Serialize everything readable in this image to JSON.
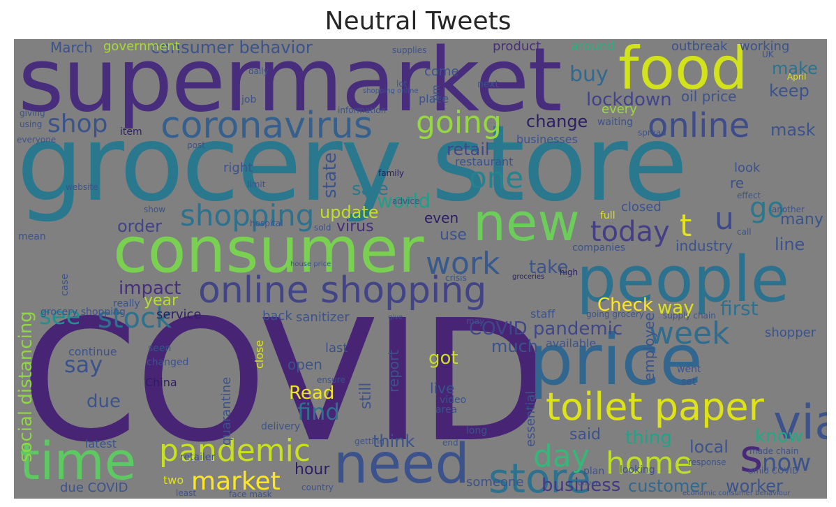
{
  "title": "Neutral Tweets",
  "words": [
    {
      "text": "grocery store",
      "color": "#2a788e"
    },
    {
      "text": "COVID",
      "color": "#482475"
    },
    {
      "text": "supermarket",
      "color": "#472d7b"
    },
    {
      "text": "consumer",
      "color": "#7ad151"
    },
    {
      "text": "people",
      "color": "#2c728e"
    },
    {
      "text": "price",
      "color": "#31668e"
    },
    {
      "text": "food",
      "color": "#d2e21b"
    },
    {
      "text": "need",
      "color": "#3b528b"
    },
    {
      "text": "new",
      "color": "#6ccd5a"
    },
    {
      "text": "time",
      "color": "#5ec962"
    },
    {
      "text": "online shopping",
      "color": "#414487"
    },
    {
      "text": "toilet paper",
      "color": "#dde318"
    },
    {
      "text": "coronavirus",
      "color": "#355f8d"
    },
    {
      "text": "via",
      "color": "#3b528b"
    },
    {
      "text": "store",
      "color": "#2c728e"
    },
    {
      "text": "pandemic",
      "color": "#c8e020"
    },
    {
      "text": "online",
      "color": "#3e4c8a"
    },
    {
      "text": "one",
      "color": "#26828e"
    },
    {
      "text": "going",
      "color": "#95d840"
    },
    {
      "text": "home",
      "color": "#bddf26"
    },
    {
      "text": "week",
      "color": "#2f6c8e"
    },
    {
      "text": "work",
      "color": "#38598c"
    },
    {
      "text": "shopping",
      "color": "#2c728e"
    },
    {
      "text": "day",
      "color": "#35b779"
    },
    {
      "text": "today",
      "color": "#433e85"
    },
    {
      "text": "stock",
      "color": "#2c728e"
    },
    {
      "text": "market",
      "color": "#fde725"
    },
    {
      "text": "now",
      "color": "#3b528b"
    },
    {
      "text": "go",
      "color": "#2a788e"
    },
    {
      "text": "s",
      "color": "#482878"
    },
    {
      "text": "u",
      "color": "#3e4a89"
    },
    {
      "text": "t",
      "color": "#e5e419"
    },
    {
      "text": "shop",
      "color": "#3b528b"
    },
    {
      "text": "lockdown",
      "color": "#414487"
    },
    {
      "text": "buy",
      "color": "#31688e"
    },
    {
      "text": "see",
      "color": "#21918c"
    },
    {
      "text": "say",
      "color": "#3b528b"
    },
    {
      "text": "find",
      "color": "#2c728e"
    },
    {
      "text": "Read",
      "color": "#f1e51d"
    },
    {
      "text": "know",
      "color": "#22a884"
    },
    {
      "text": "business",
      "color": "#443983"
    },
    {
      "text": "customer",
      "color": "#31688e"
    },
    {
      "text": "worker",
      "color": "#3b528b"
    },
    {
      "text": "COVID pandemic",
      "color": "#3f4788"
    },
    {
      "text": "Check",
      "color": "#fde725"
    },
    {
      "text": "way",
      "color": "#dde318"
    },
    {
      "text": "first",
      "color": "#2c728e"
    },
    {
      "text": "social distancing",
      "color": "#90d743"
    },
    {
      "text": "update",
      "color": "#c2df23"
    },
    {
      "text": "order",
      "color": "#414487"
    },
    {
      "text": "world",
      "color": "#1f9e89"
    },
    {
      "text": "sale",
      "color": "#2a788e"
    },
    {
      "text": "impact",
      "color": "#472f7d"
    },
    {
      "text": "year",
      "color": "#b5de2b"
    },
    {
      "text": "change",
      "color": "#2d1e63"
    },
    {
      "text": "retail",
      "color": "#3e4989"
    },
    {
      "text": "make",
      "color": "#2c728e"
    },
    {
      "text": "keep",
      "color": "#3b528b"
    },
    {
      "text": "mask",
      "color": "#3b528b"
    },
    {
      "text": "oil price",
      "color": "#3b528b"
    },
    {
      "text": "consumer behavior",
      "color": "#3b528b"
    },
    {
      "text": "March",
      "color": "#3b528b"
    },
    {
      "text": "government",
      "color": "#a8db34"
    },
    {
      "text": "outbreak",
      "color": "#3b528b"
    },
    {
      "text": "working",
      "color": "#3b528b"
    },
    {
      "text": "product",
      "color": "#472d7b"
    },
    {
      "text": "around",
      "color": "#2ab07f"
    },
    {
      "text": "every",
      "color": "#9dd93b"
    },
    {
      "text": "industry",
      "color": "#3b528b"
    },
    {
      "text": "line",
      "color": "#3b528b"
    },
    {
      "text": "many",
      "color": "#3b528b"
    },
    {
      "text": "take",
      "color": "#3b528b"
    },
    {
      "text": "state",
      "color": "#3b528b"
    },
    {
      "text": "virus",
      "color": "#472d7b"
    },
    {
      "text": "use",
      "color": "#3b528b"
    },
    {
      "text": "even",
      "color": "#2d1e63"
    },
    {
      "text": "service",
      "color": "#2d1e63"
    },
    {
      "text": "sanitizer",
      "color": "#3b528b"
    },
    {
      "text": "back",
      "color": "#3b528b"
    },
    {
      "text": "much",
      "color": "#3b528b"
    },
    {
      "text": "available",
      "color": "#3b528b"
    },
    {
      "text": "employee",
      "color": "#3b528b"
    },
    {
      "text": "shopper",
      "color": "#3b528b"
    },
    {
      "text": "got",
      "color": "#c8e020"
    },
    {
      "text": "open",
      "color": "#3b528b"
    },
    {
      "text": "still",
      "color": "#3b528b"
    },
    {
      "text": "last",
      "color": "#3b528b"
    },
    {
      "text": "live",
      "color": "#3b528b"
    },
    {
      "text": "think",
      "color": "#3b528b"
    },
    {
      "text": "said",
      "color": "#3b528b"
    },
    {
      "text": "thing",
      "color": "#20a386"
    },
    {
      "text": "local",
      "color": "#3b528b"
    },
    {
      "text": "due",
      "color": "#3b528b"
    },
    {
      "text": "continue",
      "color": "#3b528b"
    },
    {
      "text": "China",
      "color": "#2d1e63"
    },
    {
      "text": "hour",
      "color": "#2d1e63"
    },
    {
      "text": "latest",
      "color": "#3b528b"
    },
    {
      "text": "two",
      "color": "#dde318"
    },
    {
      "text": "due COVID",
      "color": "#3b528b"
    },
    {
      "text": "someone",
      "color": "#3b528b"
    },
    {
      "text": "quarantine",
      "color": "#3b528b"
    },
    {
      "text": "essential",
      "color": "#3b528b"
    },
    {
      "text": "close",
      "color": "#dde318"
    },
    {
      "text": "report",
      "color": "#3b528b"
    },
    {
      "text": "come",
      "color": "#3b528b"
    },
    {
      "text": "place",
      "color": "#3b528b"
    },
    {
      "text": "closed",
      "color": "#3b528b"
    },
    {
      "text": "re",
      "color": "#3b528b"
    },
    {
      "text": "look",
      "color": "#3b528b"
    },
    {
      "text": "restaurant",
      "color": "#3b528b"
    },
    {
      "text": "right",
      "color": "#3b528b"
    },
    {
      "text": "businesses",
      "color": "#3b528b"
    },
    {
      "text": "grocery shopping",
      "color": "#3b528b"
    },
    {
      "text": "staff",
      "color": "#3b528b"
    },
    {
      "text": "seen",
      "color": "#3b528b"
    },
    {
      "text": "changed",
      "color": "#3b528b"
    },
    {
      "text": "retailer",
      "color": "#3b528b"
    },
    {
      "text": "delivery",
      "color": "#3b528b"
    },
    {
      "text": "video",
      "color": "#3b528b"
    },
    {
      "text": "area",
      "color": "#3b528b"
    },
    {
      "text": "long",
      "color": "#3b528b"
    },
    {
      "text": "plan",
      "color": "#3b528b"
    },
    {
      "text": "response",
      "color": "#3b528b"
    },
    {
      "text": "looking",
      "color": "#3b528b"
    },
    {
      "text": "set",
      "color": "#3b528b"
    },
    {
      "text": "went",
      "color": "#3b528b"
    },
    {
      "text": "amid COVID",
      "color": "#3b528b"
    },
    {
      "text": "made chain",
      "color": "#3b528b"
    },
    {
      "text": "economic consumer behaviour",
      "color": "#3b528b"
    },
    {
      "text": "supply chain",
      "color": "#3b528b"
    },
    {
      "text": "going grocery",
      "color": "#3b528b"
    },
    {
      "text": "family",
      "color": "#2d1e63"
    },
    {
      "text": "website",
      "color": "#3b528b"
    },
    {
      "text": "limit",
      "color": "#3b528b"
    },
    {
      "text": "hospital",
      "color": "#3b528b"
    },
    {
      "text": "show",
      "color": "#3b528b"
    },
    {
      "text": "mean",
      "color": "#3b528b"
    },
    {
      "text": "advice",
      "color": "#3b528b"
    },
    {
      "text": "call",
      "color": "#3b528b"
    },
    {
      "text": "another",
      "color": "#3b528b"
    },
    {
      "text": "effect",
      "color": "#3b528b"
    },
    {
      "text": "companies",
      "color": "#3b528b"
    },
    {
      "text": "full",
      "color": "#dde318"
    },
    {
      "text": "high",
      "color": "#2d1e63"
    },
    {
      "text": "item",
      "color": "#2d1e63"
    },
    {
      "text": "post",
      "color": "#3b528b"
    },
    {
      "text": "supplies",
      "color": "#3b528b"
    },
    {
      "text": "information",
      "color": "#3b528b"
    },
    {
      "text": "waiting",
      "color": "#3b528b"
    },
    {
      "text": "spread",
      "color": "#3b528b"
    },
    {
      "text": "daily",
      "color": "#3b528b"
    },
    {
      "text": "job",
      "color": "#3b528b"
    },
    {
      "text": "next",
      "color": "#3b528b"
    },
    {
      "text": "lot",
      "color": "#3b528b"
    },
    {
      "text": "pm",
      "color": "#3b528b"
    },
    {
      "text": "UK",
      "color": "#3b528b"
    },
    {
      "text": "April",
      "color": "#dde318"
    },
    {
      "text": "really",
      "color": "#3b528b"
    },
    {
      "text": "may",
      "color": "#3b528b"
    },
    {
      "text": "sold",
      "color": "#3b528b"
    },
    {
      "text": "case",
      "color": "#3b528b"
    },
    {
      "text": "everyone",
      "color": "#3b528b"
    },
    {
      "text": "shopping online",
      "color": "#3b528b"
    },
    {
      "text": "giving",
      "color": "#3b528b"
    },
    {
      "text": "using",
      "color": "#3b528b"
    },
    {
      "text": "give",
      "color": "#3b528b"
    },
    {
      "text": "ensure",
      "color": "#3b528b"
    },
    {
      "text": "country",
      "color": "#3b528b"
    },
    {
      "text": "getting",
      "color": "#3b528b"
    },
    {
      "text": "end",
      "color": "#3b528b"
    },
    {
      "text": "least",
      "color": "#3b528b"
    },
    {
      "text": "face mask",
      "color": "#3b528b"
    },
    {
      "text": "driver",
      "color": "#3b528b"
    },
    {
      "text": "crisis",
      "color": "#3b528b"
    },
    {
      "text": "groceries",
      "color": "#2d1e63"
    },
    {
      "text": "house price",
      "color": "#3b528b"
    },
    {
      "text": "local grocery",
      "color": "#3b528b"
    }
  ]
}
